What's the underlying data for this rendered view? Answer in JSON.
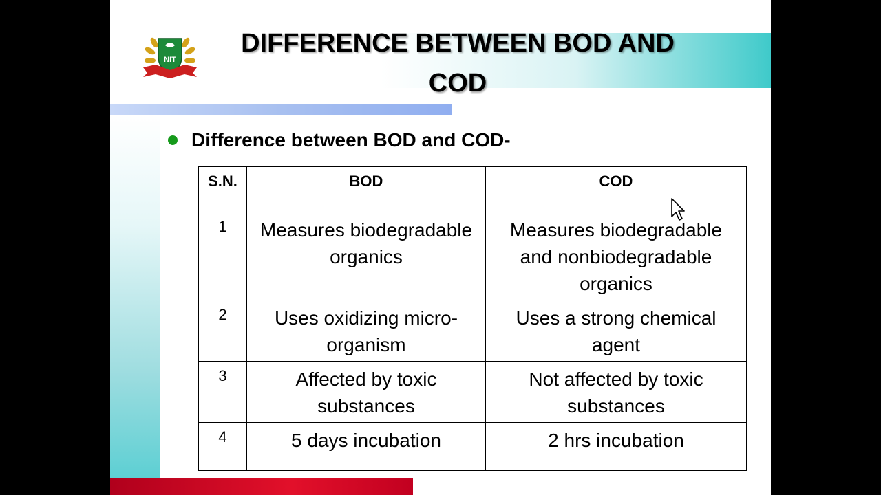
{
  "slide": {
    "title": "DIFFERENCE BETWEEN BOD AND COD",
    "bullet": "Difference between BOD and COD-",
    "logo": {
      "icon": "nit-logo-icon",
      "text": "NIT"
    }
  },
  "table": {
    "headers": [
      "S.N.",
      "BOD",
      "COD"
    ],
    "rows": [
      {
        "sn": "1",
        "bod": "Measures biodegradable organics",
        "cod": "Measures biodegradable and nonbiodegradable organics"
      },
      {
        "sn": "2",
        "bod": "Uses oxidizing micro-organism",
        "cod": "Uses a strong chemical agent"
      },
      {
        "sn": "3",
        "bod": "Affected by toxic substances",
        "cod": "Not affected by toxic substances"
      },
      {
        "sn": "4",
        "bod": "5 days incubation",
        "cod": "2 hrs incubation"
      }
    ]
  },
  "colors": {
    "bullet": "#169a1b",
    "accent_teal": "#3fcaca",
    "accent_blue": "#90aef0",
    "accent_red": "#e2102a"
  }
}
